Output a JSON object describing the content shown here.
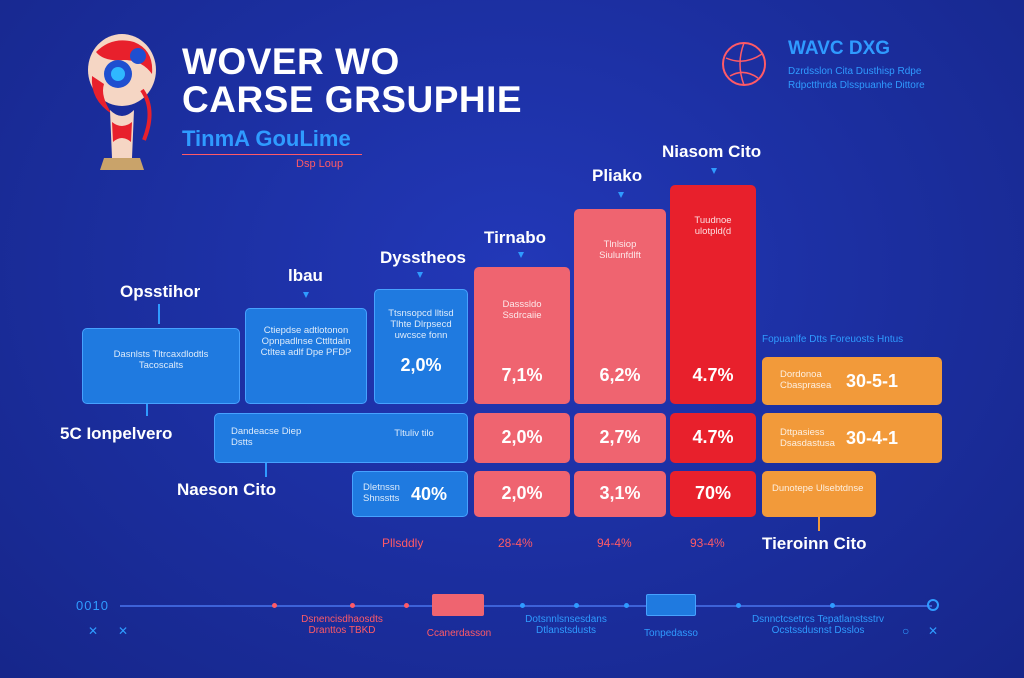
{
  "header": {
    "title_line1": "WOVER WO",
    "title_line2": "CARSE GRSUPHIE",
    "subtitle": "TinmA GouLime",
    "tagline": "Dsp Loup"
  },
  "top_right": {
    "brand": "WAVC DXG",
    "line1": "Dzrdsslon Cita Dusthisp Rdpe",
    "line2": "Rdpctthrda Dlsspuanhe Dittore"
  },
  "columns": [
    {
      "caption": "Opsstihor",
      "top_text": "Dasnlsts Tltrcaxdlodtls Tacoscalts",
      "mid_text": "",
      "bottom_text": ""
    },
    {
      "caption": "lbau",
      "top_text": "Ctiepdse adtlotonon Opnpadlnse Cttltdaln Ctltea adlf Dpe PFDP",
      "mid_text": "Dandeacse Diep Dstts",
      "bottom_text": ""
    },
    {
      "caption": "Dysstheos",
      "top_text": "Ttsnsopcd lltisd Tlhte Dlrpsecd uwcsce fonn",
      "value1": "2,0%",
      "mid_text": "Tltuliv tilo",
      "bottom_text": "Dletnssn Shnsstts",
      "value3": "40%"
    },
    {
      "caption": "Tirnabo",
      "top_text": "Dasssldo Ssdrcaiie",
      "value1": "7,1%",
      "value2": "2,0%",
      "value3": "2,0%",
      "foot": "28-4%"
    },
    {
      "caption": "Pliako",
      "top_text": "Tlnlsiop Siulunfdlft",
      "value1": "6,2%",
      "value2": "2,7%",
      "value3": "3,1%",
      "foot": "94-4%"
    },
    {
      "caption": "Niasom Cito",
      "top_text": "Tuudnoe ulotpld(d",
      "value1": "4.7%",
      "value2": "4.7%",
      "value3": "70%",
      "foot": "93-4%"
    }
  ],
  "left_labels": {
    "row2": "5C Ionpelvero",
    "row3": "Naeson Cito",
    "foot_left": "Pllsddly"
  },
  "right_block": {
    "heading": "Fopuanlfe Dtts Foreuosts Hntus",
    "row1_text": "Dordonoa Cbasprasea",
    "row1_value": "30-5-1",
    "row2_text": "Dttpasiess Dsasdastusa",
    "row2_value": "30-4-1",
    "row3_text": "Dunotepe Ulsebtdnse",
    "caption": "Tieroinn Cito"
  },
  "timeline": {
    "start_label": "0010",
    "labels_below": [
      {
        "text": "Dsnencisdhaosdts Dranttos TBKD",
        "color": "#ff5a66"
      },
      {
        "text": "Ccanerdasson",
        "color": "#ff5a66"
      },
      {
        "text": "Dotsnnlsnsesdans Dtlanstsdusts",
        "color": "#2f9bff"
      },
      {
        "text": "Tonpedasso",
        "color": "#2f9bff"
      },
      {
        "text": "Dsnnctcsetrcs Tepatlanstsstrv Ocstssdusnst Dsslos",
        "color": "#2f9bff"
      }
    ]
  },
  "colors": {
    "background": "#1b2fa0",
    "blue": "#1f7ae0",
    "pink": "#ef6470",
    "red": "#e8202c",
    "orange": "#f29a3a",
    "accent": "#2f9bff"
  }
}
